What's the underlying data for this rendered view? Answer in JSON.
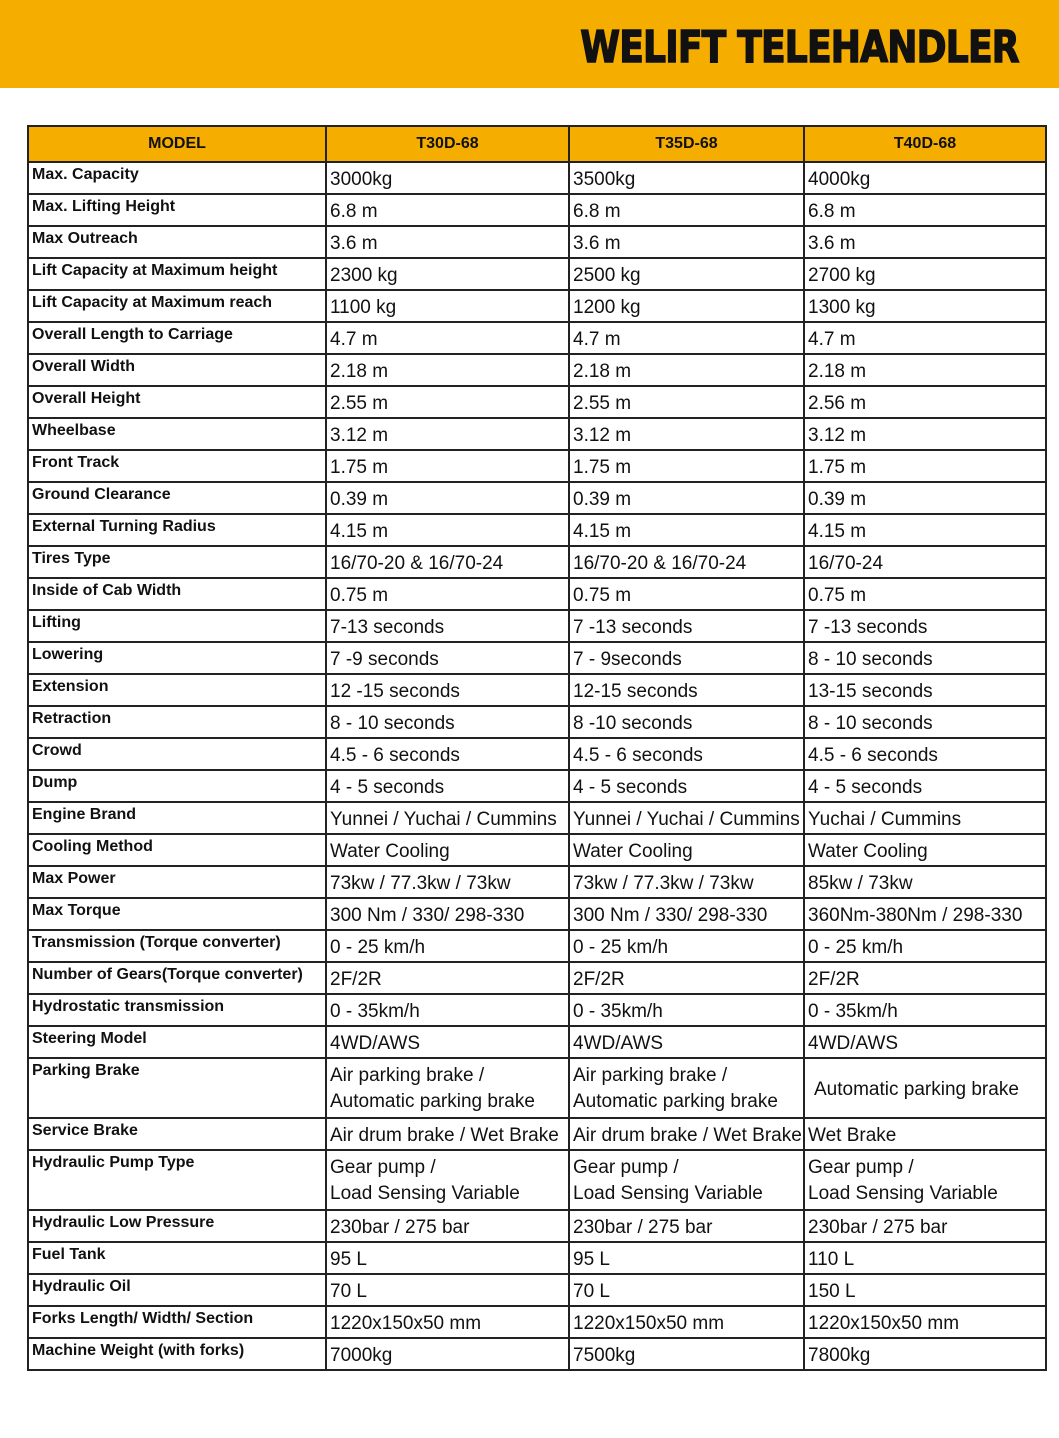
{
  "title": "WELIFT TELEHANDLER",
  "colors": {
    "accent": "#f5ae00",
    "border": "#222222"
  },
  "table": {
    "headers": [
      "MODEL",
      "T30D-68",
      "T35D-68",
      "T40D-68"
    ],
    "rows": [
      {
        "label": "Max. Capacity",
        "values": [
          "3000kg",
          "3500kg",
          "4000kg"
        ]
      },
      {
        "label": "Max. Lifting Height",
        "values": [
          "6.8 m",
          "6.8 m",
          "6.8 m"
        ]
      },
      {
        "label": "Max Outreach",
        "values": [
          "3.6 m",
          "3.6 m",
          "3.6 m"
        ]
      },
      {
        "label": "Lift Capacity at Maximum height",
        "values": [
          "2300 kg",
          "2500 kg",
          "2700 kg"
        ]
      },
      {
        "label": "Lift Capacity at Maximum reach",
        "values": [
          "1100 kg",
          "1200 kg",
          "1300 kg"
        ]
      },
      {
        "label": "Overall Length to Carriage",
        "values": [
          "4.7 m",
          "4.7 m",
          "4.7 m"
        ]
      },
      {
        "label": "Overall Width",
        "values": [
          "2.18 m",
          "2.18 m",
          "2.18 m"
        ]
      },
      {
        "label": "Overall Height",
        "values": [
          "2.55 m",
          "2.55 m",
          "2.56 m"
        ]
      },
      {
        "label": "Wheelbase",
        "values": [
          "3.12 m",
          "3.12 m",
          "3.12 m"
        ]
      },
      {
        "label": "Front Track",
        "values": [
          "1.75 m",
          "1.75 m",
          "1.75 m"
        ]
      },
      {
        "label": "Ground Clearance",
        "values": [
          "0.39 m",
          "0.39 m",
          "0.39 m"
        ]
      },
      {
        "label": "External Turning Radius",
        "values": [
          "4.15 m",
          "4.15 m",
          "4.15 m"
        ]
      },
      {
        "label": "Tires Type",
        "values": [
          "16/70-20  & 16/70-24",
          "16/70-20  & 16/70-24",
          "16/70-24"
        ]
      },
      {
        "label": "Inside of Cab Width",
        "values": [
          "0.75 m",
          "0.75 m",
          "0.75 m"
        ]
      },
      {
        "label": "Lifting",
        "values": [
          "7-13 seconds",
          "7 -13 seconds",
          "7 -13 seconds"
        ]
      },
      {
        "label": "Lowering",
        "values": [
          "7 -9 seconds",
          "7 - 9seconds",
          "8 - 10 seconds"
        ]
      },
      {
        "label": "Extension",
        "values": [
          "12 -15 seconds",
          "12-15 seconds",
          "13-15 seconds"
        ]
      },
      {
        "label": "Retraction",
        "values": [
          "8 - 10 seconds",
          "8 -10 seconds",
          "8 - 10 seconds"
        ]
      },
      {
        "label": "Crowd",
        "values": [
          "4.5 - 6 seconds",
          "4.5 - 6 seconds",
          "4.5 - 6 seconds"
        ]
      },
      {
        "label": "Dump",
        "values": [
          "4 - 5 seconds",
          "4 - 5 seconds",
          "4 - 5 seconds"
        ]
      },
      {
        "label": "Engine Brand",
        "values": [
          "Yunnei / Yuchai / Cummins",
          "Yunnei / Yuchai / Cummins",
          "Yuchai / Cummins"
        ]
      },
      {
        "label": "Cooling Method",
        "values": [
          "Water Cooling",
          "Water Cooling",
          "Water Cooling"
        ]
      },
      {
        "label": "Max Power",
        "values": [
          "73kw  /  77.3kw /  73kw",
          "73kw  /  77.3kw /  73kw",
          "85kw /  73kw"
        ]
      },
      {
        "label": "Max Torque",
        "values": [
          "300 Nm / 330/  298-330",
          "300 Nm / 330/  298-330",
          "360Nm-380Nm /  298-330"
        ]
      },
      {
        "label": "Transmission (Torque converter)",
        "values": [
          "0 - 25 km/h",
          "0 - 25 km/h",
          "0 - 25 km/h"
        ]
      },
      {
        "label": "Number of Gears(Torque converter)",
        "values": [
          "2F/2R",
          "2F/2R",
          "2F/2R"
        ]
      },
      {
        "label": "Hydrostatic transmission",
        "values": [
          "0 - 35km/h",
          "0 - 35km/h",
          "0 - 35km/h"
        ]
      },
      {
        "label": "Steering Model",
        "values": [
          "4WD/AWS",
          "4WD/AWS",
          "4WD/AWS"
        ]
      },
      {
        "label": "Parking Brake",
        "values": [
          [
            "Air parking brake /",
            "Automatic parking brake"
          ],
          [
            "Air parking brake /",
            "Automatic parking brake"
          ],
          [
            "Automatic parking brake"
          ]
        ]
      },
      {
        "label": "Service Brake",
        "values": [
          "Air drum brake / Wet Brake",
          "Air drum brake / Wet Brake",
          "Wet Brake"
        ]
      },
      {
        "label": "Hydraulic Pump Type",
        "values": [
          [
            "Gear pump /",
            "Load Sensing Variable"
          ],
          [
            "Gear pump /",
            "Load Sensing Variable"
          ],
          [
            "Gear pump /",
            "Load Sensing Variable"
          ]
        ]
      },
      {
        "label": "Hydraulic Low Pressure",
        "values": [
          "230bar / 275 bar",
          "230bar / 275 bar",
          "230bar / 275 bar"
        ]
      },
      {
        "label": "Fuel Tank",
        "values": [
          "95 L",
          "95 L",
          "110 L"
        ]
      },
      {
        "label": "Hydraulic Oil",
        "values": [
          "70 L",
          "70 L",
          "150 L"
        ]
      },
      {
        "label": "Forks Length/ Width/ Section",
        "values": [
          "1220x150x50 mm",
          "1220x150x50 mm",
          "1220x150x50 mm"
        ]
      },
      {
        "label": "Machine Weight (with forks)",
        "values": [
          "7000kg",
          "7500kg",
          "7800kg"
        ]
      }
    ]
  }
}
